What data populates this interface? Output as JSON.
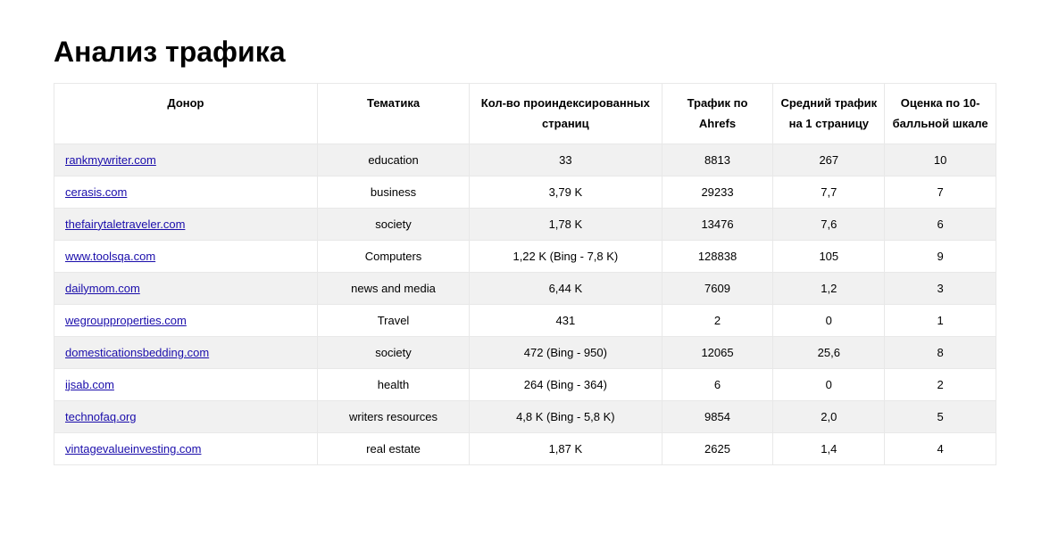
{
  "title": "Анализ трафика",
  "columns": [
    "Донор",
    "Тематика",
    "Кол-во проиндексированных страниц",
    "Трафик по Ahrefs",
    "Средний трафик на 1 страницу",
    "Оценка по 10-балльной шкале"
  ],
  "rows": [
    {
      "donor": "rankmywriter.com",
      "topic": "education",
      "pages": "33",
      "ahrefs": "8813",
      "avg": "267",
      "rating": "10"
    },
    {
      "donor": "cerasis.com",
      "topic": "business",
      "pages": "3,79 K",
      "ahrefs": "29233",
      "avg": "7,7",
      "rating": "7"
    },
    {
      "donor": "thefairytaletraveler.com",
      "topic": "society",
      "pages": "1,78 K",
      "ahrefs": "13476",
      "avg": "7,6",
      "rating": "6"
    },
    {
      "donor": "www.toolsqa.com",
      "topic": "Computers",
      "pages": "1,22 K (Bing - 7,8 K)",
      "ahrefs": "128838",
      "avg": "105",
      "rating": "9"
    },
    {
      "donor": "dailymom.com",
      "topic": "news and media",
      "pages": "6,44 K",
      "ahrefs": "7609",
      "avg": "1,2",
      "rating": "3"
    },
    {
      "donor": "wegroupproperties.com",
      "topic": "Travel",
      "pages": "431",
      "ahrefs": "2",
      "avg": "0",
      "rating": "1"
    },
    {
      "donor": "domesticationsbedding.com",
      "topic": "society",
      "pages": "472 (Bing - 950)",
      "ahrefs": "12065",
      "avg": "25,6",
      "rating": "8"
    },
    {
      "donor": "ijsab.com",
      "topic": "health",
      "pages": "264 (Bing - 364)",
      "ahrefs": "6",
      "avg": "0",
      "rating": "2"
    },
    {
      "donor": "technofaq.org",
      "topic": "writers resources",
      "pages": "4,8 K (Bing - 5,8 K)",
      "ahrefs": "9854",
      "avg": "2,0",
      "rating": "5"
    },
    {
      "donor": "vintagevalueinvesting.com",
      "topic": "real estate",
      "pages": "1,87 K",
      "ahrefs": "2625",
      "avg": "1,4",
      "rating": "4"
    }
  ]
}
